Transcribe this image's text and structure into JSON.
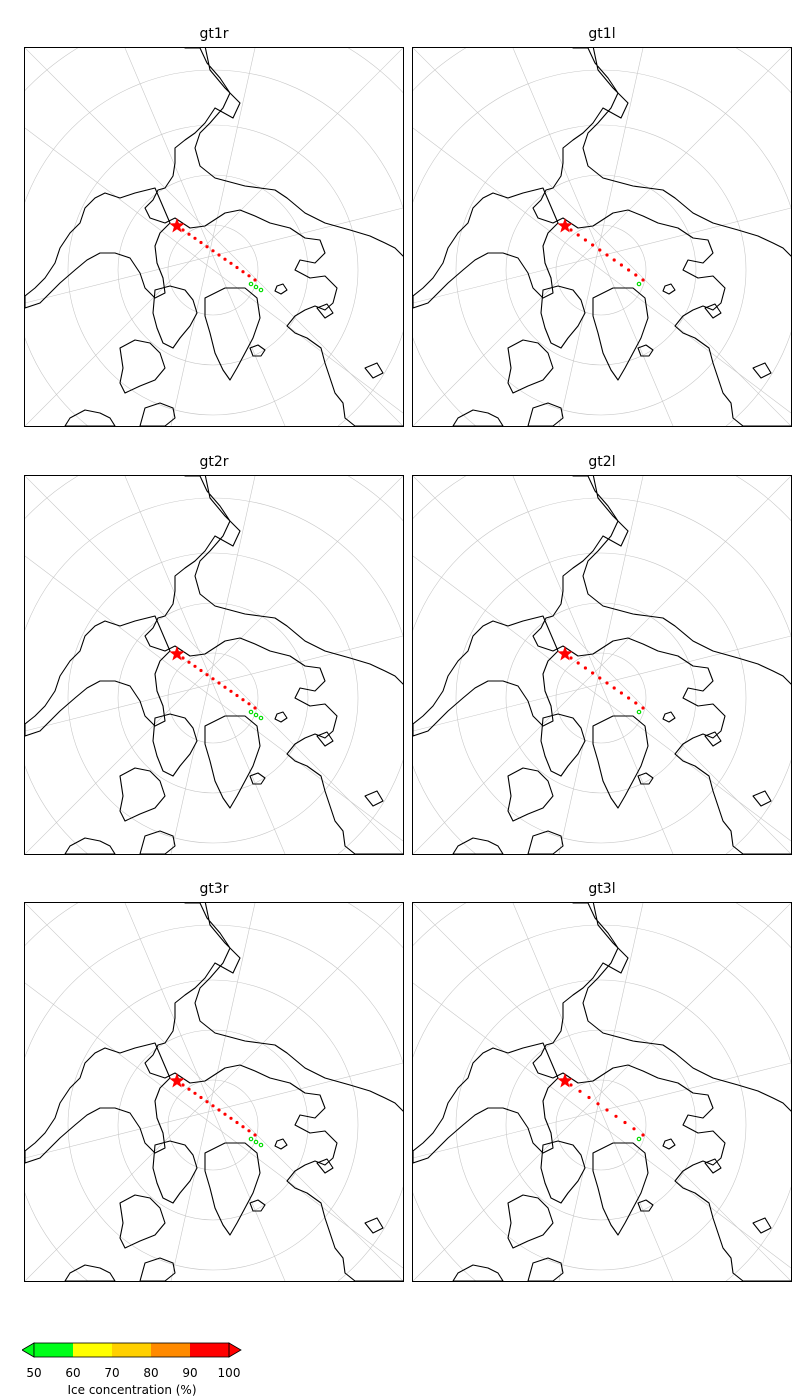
{
  "panels": [
    {
      "title": "gt1r",
      "variant": 0
    },
    {
      "title": "gt1l",
      "variant": 1
    },
    {
      "title": "gt2r",
      "variant": 0
    },
    {
      "title": "gt2l",
      "variant": 1
    },
    {
      "title": "gt3r",
      "variant": 0
    },
    {
      "title": "gt3l",
      "variant": 2
    }
  ],
  "colorbar": {
    "title": "Ice concentration (%)",
    "ticks": [
      "50",
      "60",
      "70",
      "80",
      "90",
      "100"
    ],
    "bins": [
      {
        "from": 50,
        "to": 60,
        "color": "#00ff1a"
      },
      {
        "from": 60,
        "to": 70,
        "color": "#ffff00"
      },
      {
        "from": 70,
        "to": 80,
        "color": "#ffd000"
      },
      {
        "from": 80,
        "to": 90,
        "color": "#ff8a00"
      },
      {
        "from": 90,
        "to": 100,
        "color": "#ff0000"
      }
    ],
    "extend": "both"
  },
  "colors": {
    "coastline": "#000000",
    "graticule": "#c8c8c8",
    "track_high": "#ff0000",
    "track_low": "#00dd00",
    "start_marker": "#ff0000"
  },
  "icons": {
    "start_marker": "star"
  }
}
